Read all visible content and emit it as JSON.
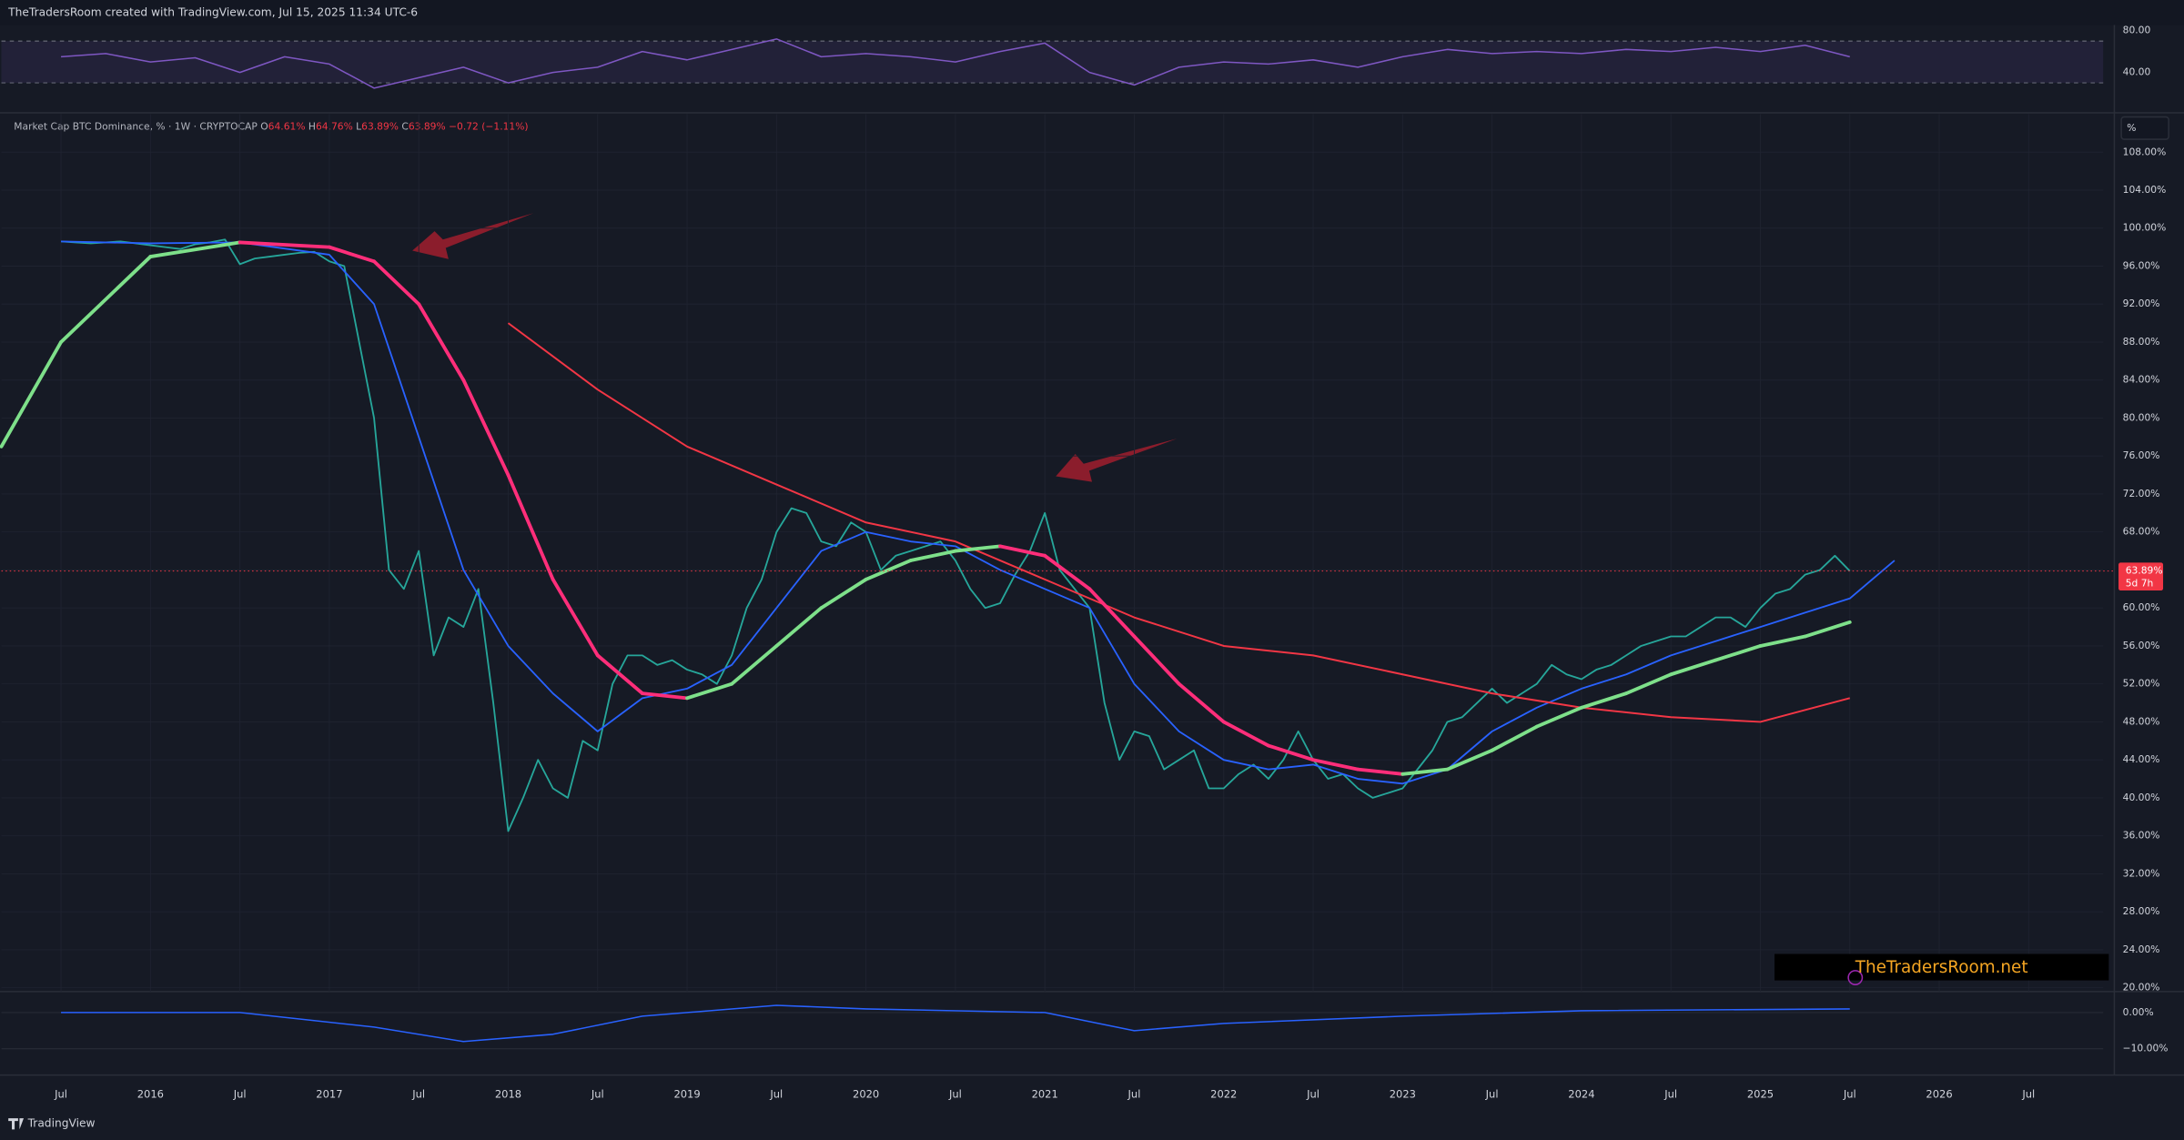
{
  "header": {
    "caption": "TheTradersRoom created with TradingView.com, Jul 15, 2025 11:34 UTC-6"
  },
  "watermark": "TheTradersRoom.net",
  "brand": "TradingView",
  "unit_button": "%",
  "chart_data": [
    {
      "type": "line",
      "title": "Market Cap BTC Dominance, % · 1W · CRYPTOCAP",
      "ohlc_labels": [
        "O",
        "H",
        "L",
        "C"
      ],
      "ohlc_values": [
        "64.61%",
        "64.76%",
        "63.89%",
        "63.89%"
      ],
      "change": "−0.72 (−1.11%)",
      "last_price": 63.89,
      "last_price_label": "63.89%",
      "countdown": "5d 7h",
      "grid": true,
      "xlim": [
        "2015-03",
        "2026-12"
      ],
      "xticks": [
        {
          "value": "2015-07",
          "label": "Jul"
        },
        {
          "value": "2016-01",
          "label": "2016"
        },
        {
          "value": "2016-07",
          "label": "Jul"
        },
        {
          "value": "2017-01",
          "label": "2017"
        },
        {
          "value": "2017-07",
          "label": "Jul"
        },
        {
          "value": "2018-01",
          "label": "2018"
        },
        {
          "value": "2018-07",
          "label": "Jul"
        },
        {
          "value": "2019-01",
          "label": "2019"
        },
        {
          "value": "2019-07",
          "label": "Jul"
        },
        {
          "value": "2020-01",
          "label": "2020"
        },
        {
          "value": "2020-07",
          "label": "Jul"
        },
        {
          "value": "2021-01",
          "label": "2021"
        },
        {
          "value": "2021-07",
          "label": "Jul"
        },
        {
          "value": "2022-01",
          "label": "2022"
        },
        {
          "value": "2022-07",
          "label": "Jul"
        },
        {
          "value": "2023-01",
          "label": "2023"
        },
        {
          "value": "2023-07",
          "label": "Jul"
        },
        {
          "value": "2024-01",
          "label": "2024"
        },
        {
          "value": "2024-07",
          "label": "Jul"
        },
        {
          "value": "2025-01",
          "label": "2025"
        },
        {
          "value": "2025-07",
          "label": "Jul"
        },
        {
          "value": "2026-01",
          "label": "2026"
        },
        {
          "value": "2026-07",
          "label": "Jul"
        }
      ],
      "ylim": [
        19.6,
        112
      ],
      "yticks": [
        {
          "value": 20,
          "label": "20.00%"
        },
        {
          "value": 24,
          "label": "24.00%"
        },
        {
          "value": 28,
          "label": "28.00%"
        },
        {
          "value": 32,
          "label": "32.00%"
        },
        {
          "value": 36,
          "label": "36.00%"
        },
        {
          "value": 40,
          "label": "40.00%"
        },
        {
          "value": 44,
          "label": "44.00%"
        },
        {
          "value": 48,
          "label": "48.00%"
        },
        {
          "value": 52,
          "label": "52.00%"
        },
        {
          "value": 56,
          "label": "56.00%"
        },
        {
          "value": 60,
          "label": "60.00%"
        },
        {
          "value": 64,
          "label": "64.00%"
        },
        {
          "value": 68,
          "label": "68.00%"
        },
        {
          "value": 72,
          "label": "72.00%"
        },
        {
          "value": 76,
          "label": "76.00%"
        },
        {
          "value": 80,
          "label": "80.00%"
        },
        {
          "value": 84,
          "label": "84.00%"
        },
        {
          "value": 88,
          "label": "88.00%"
        },
        {
          "value": 92,
          "label": "92.00%"
        },
        {
          "value": 96,
          "label": "96.00%"
        },
        {
          "value": 100,
          "label": "100.00%"
        },
        {
          "value": 104,
          "label": "104.00%"
        },
        {
          "value": 108,
          "label": "108.00%"
        }
      ],
      "series": [
        {
          "color": "#26a69a",
          "width": 1.2,
          "x": [
            "2015-07",
            "2015-08",
            "2015-09",
            "2015-10",
            "2015-11",
            "2015-12",
            "2016-01",
            "2016-02",
            "2016-03",
            "2016-04",
            "2016-05",
            "2016-06",
            "2016-07",
            "2016-08",
            "2016-09",
            "2016-10",
            "2016-11",
            "2016-12",
            "2017-01",
            "2017-02",
            "2017-03",
            "2017-04",
            "2017-05",
            "2017-06",
            "2017-07",
            "2017-08",
            "2017-09",
            "2017-10",
            "2017-11",
            "2017-12",
            "2018-01",
            "2018-02",
            "2018-03",
            "2018-04",
            "2018-05",
            "2018-06",
            "2018-07",
            "2018-08",
            "2018-09",
            "2018-10",
            "2018-11",
            "2018-12",
            "2019-01",
            "2019-02",
            "2019-03",
            "2019-04",
            "2019-05",
            "2019-06",
            "2019-07",
            "2019-08",
            "2019-09",
            "2019-10",
            "2019-11",
            "2019-12",
            "2020-01",
            "2020-02",
            "2020-03",
            "2020-04",
            "2020-05",
            "2020-06",
            "2020-07",
            "2020-08",
            "2020-09",
            "2020-10",
            "2020-11",
            "2020-12",
            "2021-01",
            "2021-02",
            "2021-03",
            "2021-04",
            "2021-05",
            "2021-06",
            "2021-07",
            "2021-08",
            "2021-09",
            "2021-10",
            "2021-11",
            "2021-12",
            "2022-01",
            "2022-02",
            "2022-03",
            "2022-04",
            "2022-05",
            "2022-06",
            "2022-07",
            "2022-08",
            "2022-09",
            "2022-10",
            "2022-11",
            "2022-12",
            "2023-01",
            "2023-02",
            "2023-03",
            "2023-04",
            "2023-05",
            "2023-06",
            "2023-07",
            "2023-08",
            "2023-09",
            "2023-10",
            "2023-11",
            "2023-12",
            "2024-01",
            "2024-02",
            "2024-03",
            "2024-04",
            "2024-05",
            "2024-06",
            "2024-07",
            "2024-08",
            "2024-09",
            "2024-10",
            "2024-11",
            "2024-12",
            "2025-01",
            "2025-02",
            "2025-03",
            "2025-04",
            "2025-05",
            "2025-06",
            "2025-07"
          ],
          "values": [
            98.6,
            98.5,
            98.4,
            98.5,
            98.6,
            98.4,
            98.2,
            98.0,
            97.8,
            98.3,
            98.5,
            98.8,
            96.2,
            96.8,
            97.0,
            97.2,
            97.4,
            97.5,
            96.5,
            96.0,
            88.0,
            80.0,
            64.0,
            62.0,
            66.0,
            55.0,
            59.0,
            58.0,
            62.0,
            50.0,
            36.5,
            40.0,
            44.0,
            41.0,
            40.0,
            46.0,
            45.0,
            52.0,
            55.0,
            55.0,
            54.0,
            54.5,
            53.5,
            53.0,
            52.0,
            55.0,
            60.0,
            63.0,
            68.0,
            70.5,
            70.0,
            67.0,
            66.5,
            69.0,
            68.0,
            64.0,
            65.5,
            66.0,
            66.5,
            67.0,
            65.0,
            62.0,
            60.0,
            60.5,
            63.5,
            66.0,
            70.0,
            64.0,
            62.0,
            60.0,
            50.0,
            44.0,
            47.0,
            46.5,
            43.0,
            44.0,
            45.0,
            41.0,
            41.0,
            42.5,
            43.5,
            42.0,
            44.0,
            47.0,
            44.0,
            42.0,
            42.5,
            41.0,
            40.0,
            40.5,
            41.0,
            43.0,
            45.0,
            48.0,
            48.5,
            50.0,
            51.5,
            50.0,
            51.0,
            52.0,
            54.0,
            53.0,
            52.5,
            53.5,
            54.0,
            55.0,
            56.0,
            56.5,
            57.0,
            57.0,
            58.0,
            59.0,
            59.0,
            58.0,
            60.0,
            61.5,
            62.0,
            63.5,
            64.0,
            65.5,
            63.89
          ]
        },
        {
          "color": "#2962ff",
          "width": 1.2,
          "x": [
            "2015-07",
            "2016-01",
            "2016-07",
            "2017-01",
            "2017-04",
            "2017-07",
            "2017-10",
            "2018-01",
            "2018-04",
            "2018-07",
            "2018-10",
            "2019-01",
            "2019-04",
            "2019-07",
            "2019-10",
            "2020-01",
            "2020-04",
            "2020-07",
            "2020-10",
            "2021-01",
            "2021-04",
            "2021-07",
            "2021-10",
            "2022-01",
            "2022-04",
            "2022-07",
            "2022-10",
            "2023-01",
            "2023-04",
            "2023-07",
            "2023-10",
            "2024-01",
            "2024-04",
            "2024-07",
            "2024-10",
            "2025-01",
            "2025-04",
            "2025-07",
            "2025-10"
          ],
          "values": [
            98.6,
            98.4,
            98.5,
            97.2,
            92,
            78,
            64,
            56,
            51,
            47,
            50.5,
            51.5,
            54,
            60,
            66,
            68,
            67,
            66.5,
            64,
            62,
            60,
            52,
            47,
            44,
            43,
            43.5,
            42,
            41.5,
            43,
            47,
            49.5,
            51.5,
            53,
            55,
            56.5,
            58,
            59.5,
            61,
            65
          ]
        },
        {
          "color": "#f23645",
          "width": 1.3,
          "x": [
            "2018-01",
            "2018-07",
            "2019-01",
            "2019-07",
            "2020-01",
            "2020-07",
            "2021-01",
            "2021-07",
            "2022-01",
            "2022-07",
            "2023-01",
            "2023-07",
            "2024-01",
            "2024-07",
            "2025-01",
            "2025-07"
          ],
          "values": [
            90,
            83,
            77,
            73,
            69,
            67,
            63,
            59,
            56,
            55,
            53,
            51,
            49.5,
            48.5,
            48,
            50.5
          ]
        },
        {
          "up_color": "#7ee08a",
          "down_color": "#ff2e7a",
          "width": 2.5,
          "x": [
            "2015-03",
            "2015-07",
            "2016-01",
            "2016-07",
            "2017-01",
            "2017-04",
            "2017-07",
            "2017-10",
            "2018-01",
            "2018-04",
            "2018-07",
            "2018-10",
            "2019-01",
            "2019-04",
            "2019-07",
            "2019-10",
            "2020-01",
            "2020-04",
            "2020-07",
            "2020-10",
            "2021-01",
            "2021-04",
            "2021-07",
            "2021-10",
            "2022-01",
            "2022-04",
            "2022-07",
            "2022-10",
            "2023-01",
            "2023-04",
            "2023-07",
            "2023-10",
            "2024-01",
            "2024-04",
            "2024-07",
            "2024-10",
            "2025-01",
            "2025-04",
            "2025-07"
          ],
          "values": [
            77,
            88,
            97,
            98.5,
            98,
            96.5,
            92,
            84,
            74,
            63,
            55,
            51,
            50.5,
            52,
            56,
            60,
            63,
            65,
            66,
            66.5,
            65.5,
            62,
            57,
            52,
            48,
            45.5,
            44,
            43,
            42.5,
            43,
            45,
            47.5,
            49.5,
            51,
            53,
            54.5,
            56,
            57,
            58.5
          ]
        }
      ]
    },
    {
      "type": "line",
      "ylim": [
        2.7,
        85.3
      ],
      "yticks": [
        {
          "value": 80,
          "label": "80.00"
        },
        {
          "value": 40,
          "label": "40.00"
        }
      ],
      "band": [
        30,
        70
      ],
      "series": [
        {
          "color": "#7e57c2",
          "width": 1,
          "x": [
            "2015-07",
            "2015-10",
            "2016-01",
            "2016-04",
            "2016-07",
            "2016-10",
            "2017-01",
            "2017-04",
            "2017-07",
            "2017-10",
            "2018-01",
            "2018-04",
            "2018-07",
            "2018-10",
            "2019-01",
            "2019-04",
            "2019-07",
            "2019-10",
            "2020-01",
            "2020-04",
            "2020-07",
            "2020-10",
            "2021-01",
            "2021-04",
            "2021-07",
            "2021-10",
            "2022-01",
            "2022-04",
            "2022-07",
            "2022-10",
            "2023-01",
            "2023-04",
            "2023-07",
            "2023-10",
            "2024-01",
            "2024-04",
            "2024-07",
            "2024-10",
            "2025-01",
            "2025-04",
            "2025-07"
          ],
          "values": [
            55,
            58,
            50,
            54,
            40,
            55,
            48,
            25,
            35,
            45,
            30,
            40,
            45,
            60,
            52,
            62,
            72,
            55,
            58,
            55,
            50,
            60,
            68,
            40,
            28,
            45,
            50,
            48,
            52,
            45,
            55,
            62,
            58,
            60,
            58,
            62,
            60,
            64,
            60,
            66,
            55
          ]
        }
      ]
    },
    {
      "type": "line",
      "ylim": [
        -16.5,
        5.8
      ],
      "yticks": [
        {
          "value": 0,
          "label": "0.00%"
        },
        {
          "value": -10,
          "label": "−10.00%"
        }
      ],
      "series": [
        {
          "color": "#2962ff",
          "width": 1,
          "x": [
            "2015-07",
            "2016-07",
            "2017-04",
            "2017-10",
            "2018-04",
            "2018-10",
            "2019-07",
            "2020-01",
            "2021-01",
            "2021-07",
            "2022-01",
            "2023-01",
            "2024-01",
            "2025-07"
          ],
          "values": [
            0,
            0,
            -4,
            -8,
            -6,
            -1,
            2,
            1,
            0,
            -5,
            -3,
            -1,
            0.5,
            1
          ]
        }
      ]
    }
  ]
}
